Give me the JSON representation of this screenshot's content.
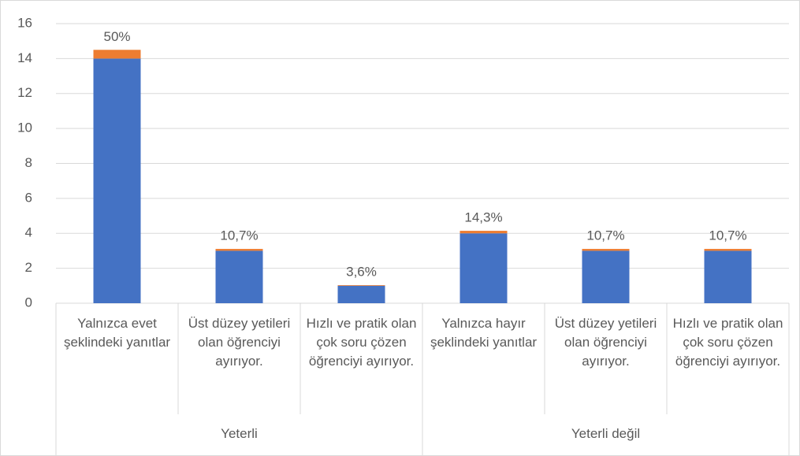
{
  "chart_data": {
    "type": "bar",
    "stacked": true,
    "categories": [
      "Yalnızca evet şeklindeki yanıtlar",
      "Üst düzey yetileri olan öğrenciyi ayırıyor.",
      "Hızlı ve pratik olan çok soru çözen öğrenciyi ayırıyor.",
      "Yalnızca hayır şeklindeki yanıtlar",
      "Üst düzey yetileri olan öğrenciyi ayırıyor.",
      "Hızlı ve pratik olan çok soru çözen öğrenciyi ayırıyor."
    ],
    "groups": [
      "Yeterli",
      "Yeterli değil"
    ],
    "series": [
      {
        "color": "#4472c4",
        "values": [
          14,
          3,
          1,
          4,
          3,
          3
        ]
      },
      {
        "color": "#ed7d31",
        "values": [
          0.5,
          0.107,
          0.036,
          0.143,
          0.107,
          0.107
        ],
        "value_labels": [
          "50%",
          "10,7%",
          "3,6%",
          "14,3%",
          "10,7%",
          "10,7%"
        ]
      }
    ],
    "ylim": [
      0,
      16
    ],
    "yticks": [
      0,
      2,
      4,
      6,
      8,
      10,
      12,
      14,
      16
    ],
    "grid": true
  }
}
